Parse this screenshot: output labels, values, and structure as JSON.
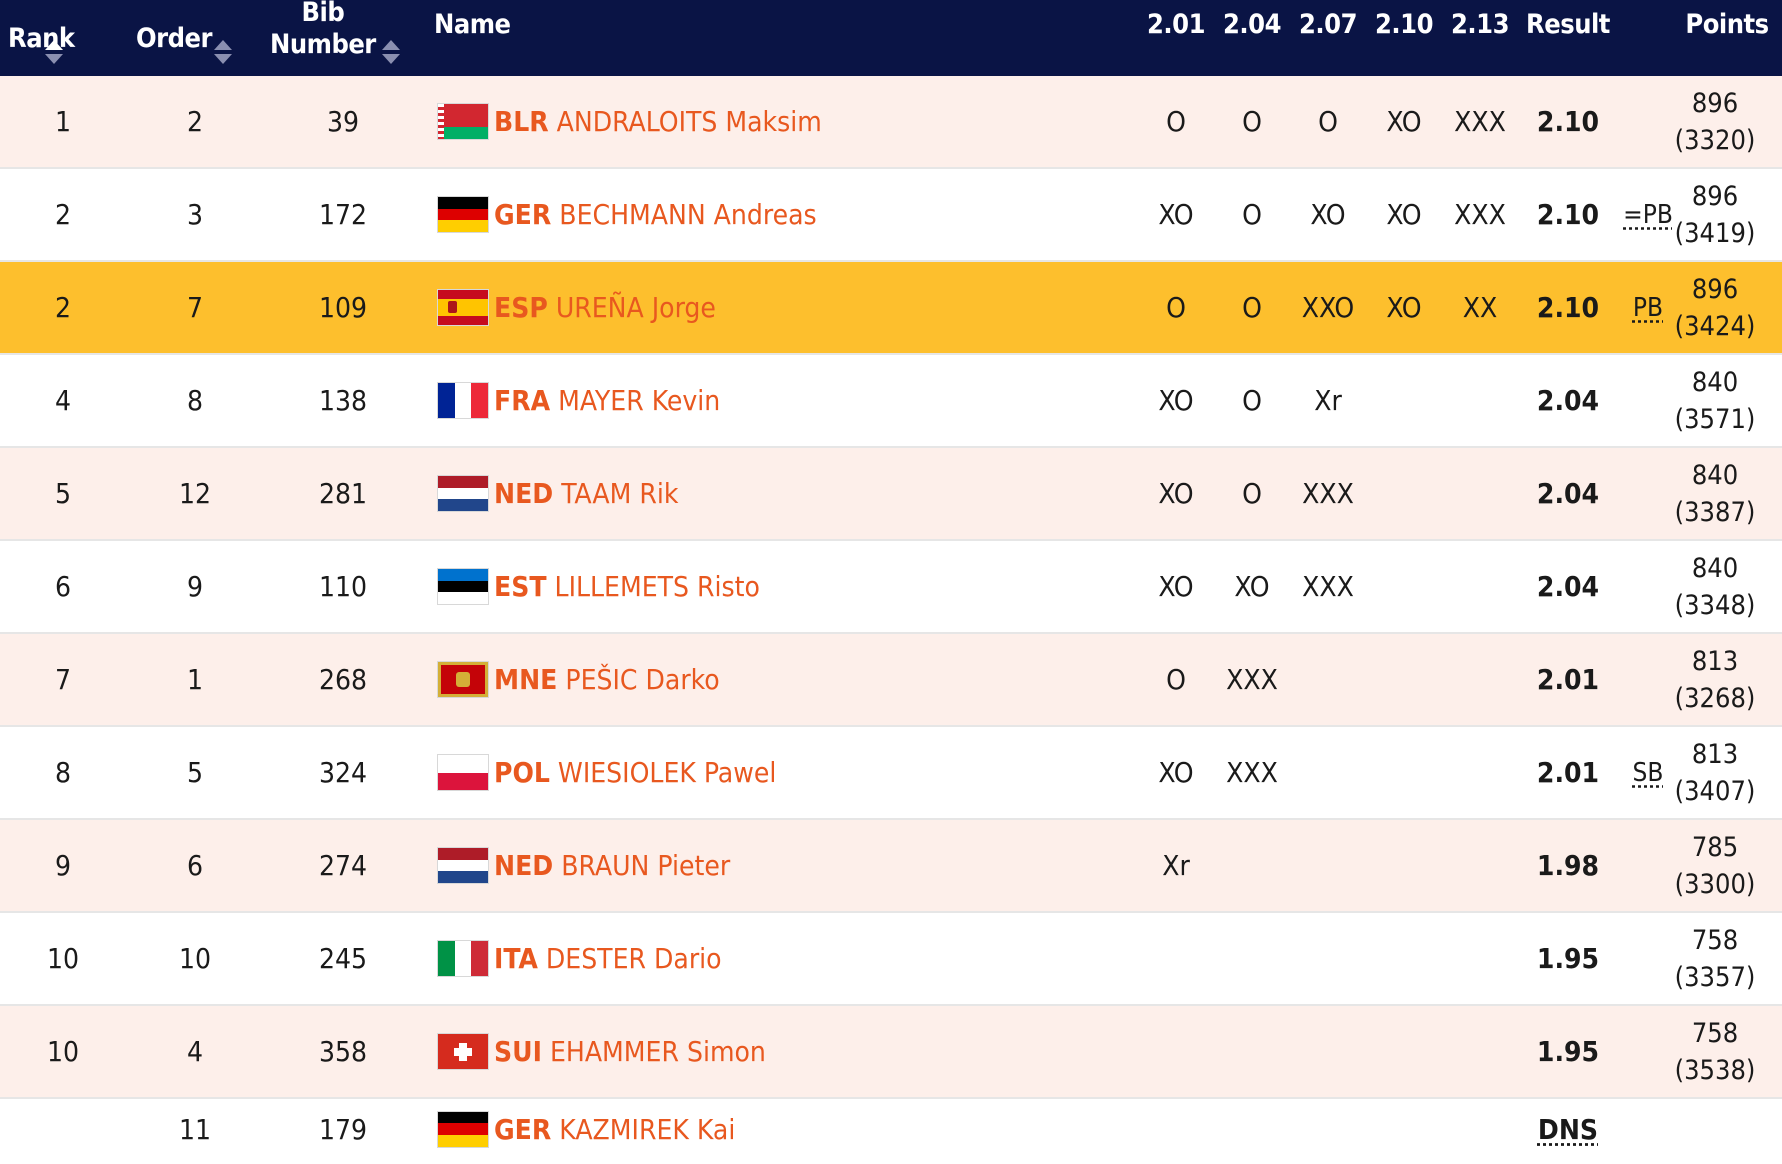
{
  "header": {
    "rank": "Rank",
    "order": "Order",
    "bib_line1": "Bib",
    "bib_line2": "Number",
    "name": "Name",
    "heights": [
      "2.01",
      "2.04",
      "2.07",
      "2.10",
      "2.13"
    ],
    "result": "Result",
    "points": "Points"
  },
  "colors": {
    "header_bg": "#0a1445",
    "row_alt": "#fdefea",
    "highlight": "#fdbf2d",
    "name_accent": "#e8581f"
  },
  "rows": [
    {
      "rank": "1",
      "order": "2",
      "bib": "39",
      "country": "BLR",
      "athlete": "ANDRALOITS Maksim",
      "flag": "blr-flag-icon",
      "attempts": [
        "O",
        "O",
        "O",
        "XO",
        "XXX"
      ],
      "result": "2.10",
      "note": "",
      "points": "896",
      "total": "(3320)"
    },
    {
      "rank": "2",
      "order": "3",
      "bib": "172",
      "country": "GER",
      "athlete": "BECHMANN Andreas",
      "flag": "ger-flag-icon",
      "attempts": [
        "XO",
        "O",
        "XO",
        "XO",
        "XXX"
      ],
      "result": "2.10",
      "note": "=PB",
      "points": "896",
      "total": "(3419)"
    },
    {
      "rank": "2",
      "order": "7",
      "bib": "109",
      "country": "ESP",
      "athlete": "UREÑA Jorge",
      "flag": "esp-flag-icon",
      "attempts": [
        "O",
        "O",
        "XXO",
        "XO",
        "XX"
      ],
      "result": "2.10",
      "note": "PB",
      "points": "896",
      "total": "(3424)"
    },
    {
      "rank": "4",
      "order": "8",
      "bib": "138",
      "country": "FRA",
      "athlete": "MAYER Kevin",
      "flag": "fra-flag-icon",
      "attempts": [
        "XO",
        "O",
        "Xr",
        "",
        ""
      ],
      "result": "2.04",
      "note": "",
      "points": "840",
      "total": "(3571)"
    },
    {
      "rank": "5",
      "order": "12",
      "bib": "281",
      "country": "NED",
      "athlete": "TAAM Rik",
      "flag": "ned-flag-icon",
      "attempts": [
        "XO",
        "O",
        "XXX",
        "",
        ""
      ],
      "result": "2.04",
      "note": "",
      "points": "840",
      "total": "(3387)"
    },
    {
      "rank": "6",
      "order": "9",
      "bib": "110",
      "country": "EST",
      "athlete": "LILLEMETS Risto",
      "flag": "est-flag-icon",
      "attempts": [
        "XO",
        "XO",
        "XXX",
        "",
        ""
      ],
      "result": "2.04",
      "note": "",
      "points": "840",
      "total": "(3348)"
    },
    {
      "rank": "7",
      "order": "1",
      "bib": "268",
      "country": "MNE",
      "athlete": "PEŠIC Darko",
      "flag": "mne-flag-icon",
      "attempts": [
        "O",
        "XXX",
        "",
        "",
        ""
      ],
      "result": "2.01",
      "note": "",
      "points": "813",
      "total": "(3268)"
    },
    {
      "rank": "8",
      "order": "5",
      "bib": "324",
      "country": "POL",
      "athlete": "WIESIOLEK Pawel",
      "flag": "pol-flag-icon",
      "attempts": [
        "XO",
        "XXX",
        "",
        "",
        ""
      ],
      "result": "2.01",
      "note": "SB",
      "points": "813",
      "total": "(3407)"
    },
    {
      "rank": "9",
      "order": "6",
      "bib": "274",
      "country": "NED",
      "athlete": "BRAUN Pieter",
      "flag": "ned-flag-icon",
      "attempts": [
        "Xr",
        "",
        "",
        "",
        ""
      ],
      "result": "1.98",
      "note": "",
      "points": "785",
      "total": "(3300)"
    },
    {
      "rank": "10",
      "order": "10",
      "bib": "245",
      "country": "ITA",
      "athlete": "DESTER Dario",
      "flag": "ita-flag-icon",
      "attempts": [
        "",
        "",
        "",
        "",
        ""
      ],
      "result": "1.95",
      "note": "",
      "points": "758",
      "total": "(3357)"
    },
    {
      "rank": "10",
      "order": "4",
      "bib": "358",
      "country": "SUI",
      "athlete": "EHAMMER Simon",
      "flag": "sui-flag-icon",
      "attempts": [
        "",
        "",
        "",
        "",
        ""
      ],
      "result": "1.95",
      "note": "",
      "points": "758",
      "total": "(3538)"
    },
    {
      "rank": "",
      "order": "11",
      "bib": "179",
      "country": "GER",
      "athlete": "KAZMIREK Kai",
      "flag": "ger-flag-icon",
      "attempts": [
        "",
        "",
        "",
        "",
        ""
      ],
      "result": "DNS",
      "note": "",
      "points": "",
      "total": ""
    }
  ]
}
